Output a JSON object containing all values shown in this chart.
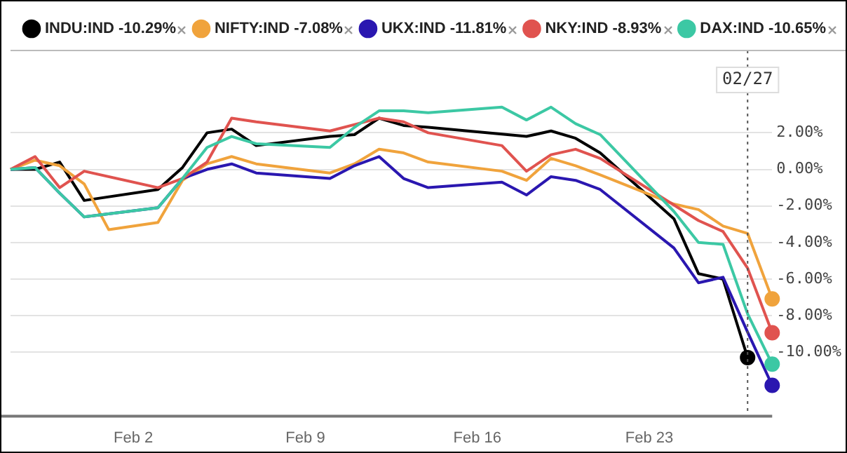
{
  "chart_data": {
    "type": "line",
    "x": [
      "--01-28",
      "--01-29",
      "--01-30",
      "--01-31",
      "--02-01",
      "--02-03",
      "--02-04",
      "--02-05",
      "--02-06",
      "--02-07",
      "--02-10",
      "--02-11",
      "--02-12",
      "--02-13",
      "--02-14",
      "--02-17",
      "--02-18",
      "--02-19",
      "--02-20",
      "--02-21",
      "--02-24",
      "--02-25",
      "--02-26",
      "--02-27",
      "--02-28"
    ],
    "series": [
      {
        "name": "INDU:IND -10.29%",
        "color": "#000000",
        "values": [
          0,
          0,
          0.4,
          -1.7,
          null,
          -1.1,
          0.1,
          2.0,
          2.2,
          1.3,
          1.8,
          1.9,
          2.8,
          2.4,
          2.3,
          null,
          1.8,
          2.1,
          1.7,
          0.9,
          -2.7,
          -5.7,
          -6.0,
          -10.29,
          null
        ]
      },
      {
        "name": "NIFTY:IND -7.08%",
        "color": "#f0a33c",
        "values": [
          0,
          0.5,
          0.2,
          -0.8,
          -3.3,
          -2.9,
          -0.6,
          0.3,
          0.7,
          0.3,
          -0.2,
          0.3,
          1.1,
          0.9,
          0.4,
          -0.1,
          -0.6,
          0.6,
          0.2,
          -0.3,
          -1.9,
          -2.2,
          -3.1,
          -3.5,
          -7.08
        ]
      },
      {
        "name": "UKX:IND -11.81%",
        "color": "#2a17b0",
        "values": [
          0,
          0.1,
          -1.3,
          -2.6,
          null,
          -2.1,
          -0.5,
          0,
          0.3,
          -0.2,
          -0.5,
          0.2,
          0.7,
          -0.5,
          -1.0,
          -0.7,
          -1.4,
          -0.4,
          -0.6,
          -1.1,
          -4.3,
          -6.2,
          -5.9,
          -8.9,
          -11.81
        ]
      },
      {
        "name": "NKY:IND -8.93%",
        "color": "#e0534f",
        "values": [
          0,
          0.7,
          -1.0,
          -0.1,
          null,
          -1.0,
          -0.5,
          0.4,
          2.8,
          2.6,
          2.1,
          null,
          2.8,
          2.6,
          2.0,
          1.3,
          -0.1,
          0.8,
          1.1,
          0.6,
          null,
          -2.8,
          -3.4,
          -5.4,
          -8.93
        ]
      },
      {
        "name": "DAX:IND -10.65%",
        "color": "#3cc8a4",
        "values": [
          0,
          0.1,
          -1.3,
          -2.6,
          null,
          -2.1,
          -0.5,
          1.2,
          1.8,
          1.4,
          1.2,
          2.3,
          3.2,
          3.2,
          3.1,
          3.4,
          2.7,
          3.4,
          2.5,
          1.9,
          -2.3,
          -4.0,
          -4.1,
          -7.9,
          -10.65
        ]
      }
    ],
    "xlim": [
      "--01-28",
      "--02-28"
    ],
    "xticks": [
      {
        "value": "--02-02",
        "label": "Feb 2"
      },
      {
        "value": "--02-09",
        "label": "Feb 9"
      },
      {
        "value": "--02-16",
        "label": "Feb 16"
      },
      {
        "value": "--02-23",
        "label": "Feb 23"
      }
    ],
    "ylim": [
      -13.5,
      6.5
    ],
    "yticks": [
      {
        "value": 2,
        "label": "2.00%"
      },
      {
        "value": 0,
        "label": "0.00%"
      },
      {
        "value": -2,
        "label": "-2.00%"
      },
      {
        "value": -4,
        "label": "-4.00%"
      },
      {
        "value": -6,
        "label": "-6.00%"
      },
      {
        "value": -8,
        "label": "-8.00%"
      },
      {
        "value": -10,
        "label": "-10.00%"
      }
    ],
    "ref_lines": [
      {
        "axis": "x",
        "value": "--02-27",
        "label": "02/27",
        "line_style": "dotted",
        "color": "#555555"
      }
    ],
    "grid": "y",
    "legend": "top right",
    "line_style": "solid"
  }
}
